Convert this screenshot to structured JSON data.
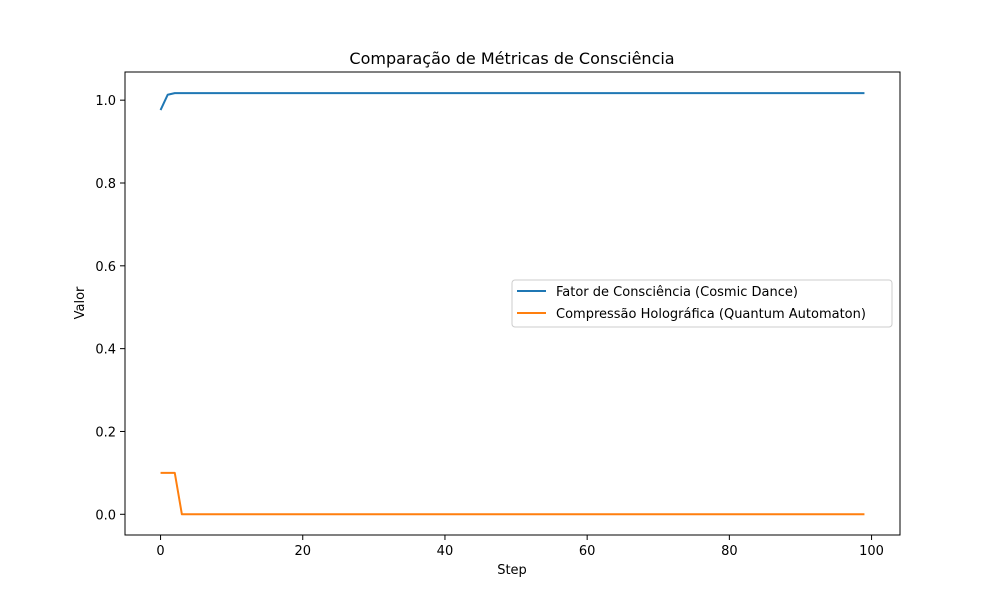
{
  "chart_data": {
    "type": "line",
    "title": "Comparação de Métricas de Consciência",
    "xlabel": "Step",
    "ylabel": "Valor",
    "xlim": [
      -5,
      104
    ],
    "ylim": [
      -0.05,
      1.068
    ],
    "xticks": [
      0,
      20,
      40,
      60,
      80,
      100
    ],
    "yticks": [
      0.0,
      0.2,
      0.4,
      0.6,
      0.8,
      1.0
    ],
    "xtick_labels": [
      "0",
      "20",
      "40",
      "60",
      "80",
      "100"
    ],
    "ytick_labels": [
      "0.0",
      "0.2",
      "0.4",
      "0.6",
      "0.8",
      "1.0"
    ],
    "grid": false,
    "legend_position": "center-right",
    "series": [
      {
        "name": "Fator de Consciência (Cosmic Dance)",
        "color": "#1f77b4",
        "x": [
          0,
          1,
          2,
          3,
          99
        ],
        "y": [
          0.976,
          1.013,
          1.017,
          1.017,
          1.017
        ]
      },
      {
        "name": "Compressão Holográfica (Quantum Automaton)",
        "color": "#ff7f0e",
        "x": [
          0,
          1,
          2,
          3,
          99
        ],
        "y": [
          0.1,
          0.1,
          0.1,
          0.0,
          0.0
        ]
      }
    ]
  }
}
